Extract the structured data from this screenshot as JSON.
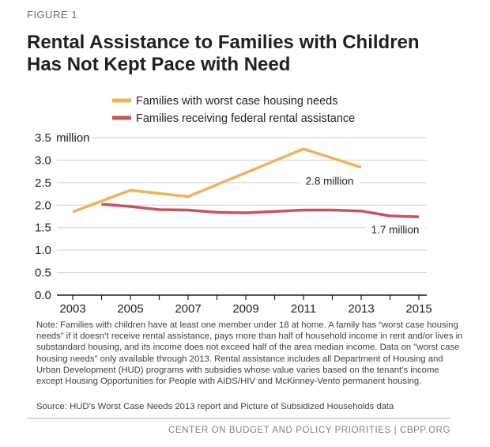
{
  "figure_label": "FIGURE 1",
  "title_lines": [
    "Rental Assistance to Families with Children",
    "Has Not Kept Pace with Need"
  ],
  "chart_data": {
    "type": "line",
    "x": [
      2003,
      2004,
      2005,
      2006,
      2007,
      2008,
      2009,
      2010,
      2011,
      2012,
      2013,
      2014,
      2015
    ],
    "series": [
      {
        "name": "Families with worst case housing needs",
        "color": "#f0b25a",
        "points": [
          [
            2003,
            1.85
          ],
          [
            2005,
            2.33
          ],
          [
            2007,
            2.19
          ],
          [
            2011,
            3.25
          ],
          [
            2013,
            2.84
          ]
        ]
      },
      {
        "name": "Families receiving federal rental assistance",
        "color": "#c8545c",
        "points": [
          [
            2004,
            2.02
          ],
          [
            2005,
            1.97
          ],
          [
            2006,
            1.9
          ],
          [
            2007,
            1.89
          ],
          [
            2008,
            1.84
          ],
          [
            2009,
            1.83
          ],
          [
            2011,
            1.89
          ],
          [
            2012,
            1.89
          ],
          [
            2013,
            1.87
          ],
          [
            2014,
            1.76
          ],
          [
            2015,
            1.74
          ]
        ]
      }
    ],
    "ylim": [
      0,
      3.5
    ],
    "yticks": [
      "0.0",
      "0.5",
      "1.0",
      "1.5",
      "2.0",
      "2.5",
      "3.0",
      "3.5"
    ],
    "y_top_unit": "million",
    "xticks": [
      "2003",
      "2005",
      "2007",
      "2009",
      "2011",
      "2013",
      "2015"
    ],
    "annotations": [
      {
        "text": "2.8 million",
        "x": 2013,
        "y": 2.84,
        "series": 0
      },
      {
        "text": "1.7 million",
        "x": 2015,
        "y": 1.74,
        "series": 1
      }
    ],
    "legend_position": "top"
  },
  "note": "Note: Families with children have at least one member under 18 at home. A family has “worst case housing needs” if it doesn’t receive rental assistance, pays more than half of household income in rent and/or lives in substandard housing, and its income does not exceed half of the area median income. Data on \"worst case housing needs\" only available through 2013. Rental assistance includes all Department of Housing and Urban Development (HUD) programs with subsidies whose value varies based on the tenant’s income except Housing Opportunities for People with AIDS/HIV and McKinney-Vento permanent housing.",
  "source": "Source: HUD’s Worst Case Needs 2013 report and Picture of Subsidized Households data",
  "footer": "CENTER ON BUDGET AND POLICY PRIORITIES | CBPP.ORG"
}
